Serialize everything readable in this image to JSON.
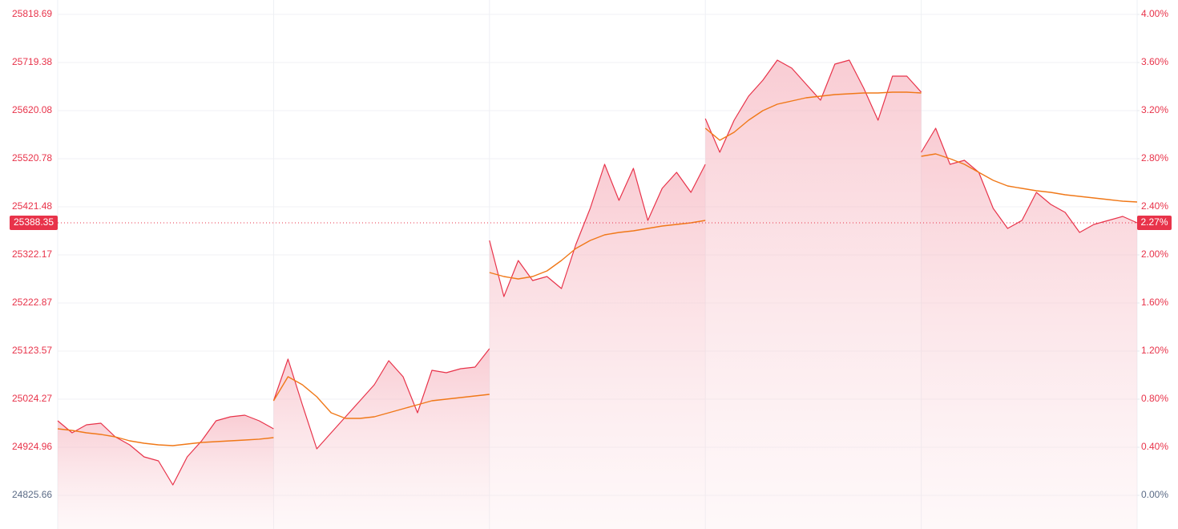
{
  "chart_data": {
    "type": "line",
    "categories": [
      null,
      null,
      null,
      null,
      null,
      null,
      null,
      null,
      null,
      null,
      null,
      null,
      null,
      null,
      null,
      null,
      null,
      null,
      null,
      null,
      null,
      null,
      null,
      null,
      null,
      null,
      null,
      null,
      null,
      null,
      null,
      null,
      null,
      null,
      null,
      null,
      null,
      null,
      null,
      null,
      null,
      null,
      null,
      null,
      null,
      null,
      null,
      null,
      null,
      null,
      null,
      null,
      null,
      null,
      null,
      null,
      null,
      null,
      null,
      null,
      null,
      null,
      null,
      null,
      null,
      null,
      null,
      null,
      null,
      null,
      null,
      null,
      null,
      null,
      null,
      null,
      null,
      null,
      null,
      null,
      null,
      null,
      null,
      null
    ],
    "series": [
      {
        "color": "#e8334a",
        "fill": true,
        "values": [
          24979.6,
          24954.8,
          24971.3,
          24974.6,
          24946.5,
          24929.9,
          24905.1,
          24896.8,
          24847.2,
          24905.1,
          24938.2,
          24979.6,
          24987.9,
          24991.2,
          24979.6,
          24963.1,
          null,
          25020.9,
          25107.0,
          25012.7,
          24921.7,
          24954.8,
          24987.9,
          25020.9,
          25054.1,
          25103.7,
          25070.6,
          24996.1,
          25083.8,
          25078.9,
          25087.2,
          25090.5,
          25128.6,
          null,
          25352.0,
          25236.1,
          25310.6,
          25269.2,
          25277.5,
          25252.7,
          25343.7,
          25418.2,
          25509.2,
          25434.7,
          25500.9,
          25393.4,
          25459.6,
          25492.7,
          25451.3,
          25509.2,
          null,
          25603.6,
          25534.0,
          25600.2,
          25649.9,
          25683.0,
          25724.4,
          25707.8,
          25674.7,
          25641.6,
          25716.1,
          25724.4,
          25666.4,
          25600.2,
          25691.3,
          25691.3,
          25658.2,
          null,
          25534.0,
          25583.7,
          25509.2,
          25517.5,
          25492.7,
          25418.2,
          25376.8,
          25393.4,
          25451.3,
          25426.5,
          25409.9,
          25368.5,
          25385.1,
          25393.4,
          25401.6,
          25388.35
        ]
      },
      {
        "color": "#f07818",
        "fill": false,
        "values": [
          24963.1,
          24959.8,
          24954.8,
          24951.5,
          24946.5,
          24938.2,
          24933.3,
          24929.9,
          24928.3,
          24931.6,
          24934.9,
          24936.6,
          24938.2,
          24939.9,
          24941.6,
          24944.9,
          null,
          25020.9,
          25070.6,
          25054.1,
          25029.3,
          24996.1,
          24984.6,
          24984.6,
          24987.9,
          24996.1,
          25004.4,
          25012.7,
          25020.9,
          25024.3,
          25027.6,
          25030.9,
          25034.2,
          null,
          25285.8,
          25277.5,
          25272.6,
          25277.5,
          25289.1,
          25310.6,
          25335.4,
          25352.0,
          25363.6,
          25368.5,
          25371.9,
          25376.8,
          25381.8,
          25385.1,
          25388.4,
          25393.4,
          null,
          25583.7,
          25558.9,
          25575.4,
          25600.2,
          25620.1,
          25633.3,
          25640.0,
          25646.6,
          25649.9,
          25653.2,
          25654.9,
          25656.5,
          25656.5,
          25658.2,
          25658.2,
          25656.5,
          null,
          25525.8,
          25530.7,
          25520.8,
          25509.2,
          25492.7,
          25476.1,
          25464.5,
          25459.6,
          25454.6,
          25451.3,
          25446.3,
          25443.0,
          25439.7,
          25436.4,
          25433.1,
          25431.4
        ]
      }
    ],
    "ylim": [
      24756.15,
      25848.48
    ],
    "yticks": [
      24825.66,
      24924.96,
      25024.27,
      25123.57,
      25222.87,
      25322.17,
      25421.48,
      25520.78,
      25620.08,
      25719.38,
      25818.69
    ],
    "y2lim": [
      -0.28,
      4.12
    ],
    "y2ticks": [
      {
        "value": 0,
        "label": "0.00%"
      },
      {
        "value": 0.4,
        "label": "0.40%"
      },
      {
        "value": 0.8,
        "label": "0.80%"
      },
      {
        "value": 1.2,
        "label": "1.20%"
      },
      {
        "value": 1.6,
        "label": "1.60%"
      },
      {
        "value": 2.0,
        "label": "2.00%"
      },
      {
        "value": 2.4,
        "label": "2.40%"
      },
      {
        "value": 2.8,
        "label": "2.80%"
      },
      {
        "value": 3.2,
        "label": "3.20%"
      },
      {
        "value": 3.6,
        "label": "3.60%"
      },
      {
        "value": 4.0,
        "label": "4.00%"
      }
    ],
    "current_price": 25388.35,
    "current_change": {
      "value": 2.27,
      "label": "2.27%"
    },
    "grid": true
  }
}
